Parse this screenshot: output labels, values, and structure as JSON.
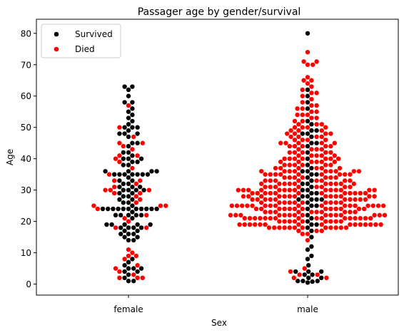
{
  "chart_data": {
    "type": "scatter",
    "subtype": "swarm",
    "title": "Passager age by gender/survival",
    "xlabel": "Sex",
    "ylabel": "Age",
    "categories": [
      "female",
      "male"
    ],
    "ylim": [
      -3.5,
      84.5
    ],
    "yticks": [
      0,
      10,
      20,
      30,
      40,
      50,
      60,
      70,
      80
    ],
    "grid": false,
    "legend_position": "top-left",
    "series": [
      {
        "name": "Survived",
        "color": "#000000",
        "values": {
          "female": [
            1,
            1,
            2,
            3,
            4,
            4,
            5,
            5,
            5,
            6,
            7,
            8,
            14,
            14,
            15,
            15,
            16,
            16,
            16,
            17,
            17,
            18,
            18,
            18,
            18,
            19,
            19,
            19,
            19,
            19,
            21,
            22,
            22,
            22,
            22,
            22,
            23,
            24,
            24,
            24,
            24,
            24,
            24,
            24,
            24,
            24,
            24,
            24,
            25,
            26,
            26,
            27,
            27,
            28,
            28,
            29,
            29,
            30,
            30,
            30,
            30,
            31,
            31,
            31,
            32,
            32,
            33,
            33,
            34,
            35,
            35,
            35,
            35,
            35,
            35,
            35,
            36,
            36,
            36,
            36,
            38,
            38,
            39,
            39,
            40,
            40,
            40,
            41,
            42,
            42,
            44,
            45,
            45,
            47,
            48,
            48,
            48,
            49,
            50,
            50,
            50,
            51,
            52,
            53,
            54,
            55,
            56,
            58,
            58,
            60,
            62,
            63,
            63
          ],
          "male": [
            0.5,
            0.8,
            1,
            1,
            1,
            2,
            2,
            3,
            3,
            4,
            4,
            4,
            6,
            8,
            9,
            11,
            12,
            15,
            17,
            18,
            19,
            19,
            20,
            21,
            22,
            24,
            25,
            25,
            26,
            27,
            27,
            27,
            27,
            28,
            28,
            29,
            29,
            30,
            30,
            31,
            32,
            32,
            33,
            34,
            35,
            35,
            36,
            36,
            37,
            38,
            40,
            42,
            44,
            45,
            45,
            47,
            48,
            48,
            49,
            49,
            51,
            52,
            56,
            58,
            60,
            62,
            80
          ]
        }
      },
      {
        "name": "Died",
        "color": "#ff0000",
        "values": {
          "female": [
            2,
            2,
            2,
            3,
            4,
            5,
            6,
            8,
            9,
            9,
            10,
            11,
            18,
            18,
            20,
            21,
            22,
            24,
            25,
            25,
            25,
            26,
            27,
            28,
            29,
            29,
            30,
            30,
            30,
            31,
            32,
            33,
            33,
            35,
            37,
            39,
            40,
            41,
            41,
            43,
            44,
            45,
            45,
            47,
            50,
            57
          ],
          "male": [
            2,
            2,
            3,
            3,
            4,
            5,
            14,
            16,
            16,
            17,
            17,
            17,
            18,
            18,
            18,
            18,
            18,
            18,
            18,
            18,
            18,
            18,
            18,
            18,
            19,
            19,
            19,
            19,
            19,
            19,
            19,
            19,
            19,
            19,
            19,
            19,
            19,
            19,
            19,
            20,
            20,
            20,
            20,
            20,
            20,
            20,
            20,
            20,
            21,
            21,
            21,
            21,
            21,
            21,
            21,
            21,
            21,
            21,
            21,
            21,
            21,
            21,
            21,
            21,
            22,
            22,
            22,
            22,
            22,
            22,
            22,
            22,
            22,
            22,
            22,
            22,
            22,
            22,
            22,
            23,
            23,
            23,
            23,
            23,
            23,
            23,
            23,
            23,
            23,
            24,
            24,
            24,
            24,
            24,
            24,
            24,
            24,
            24,
            24,
            24,
            24,
            24,
            25,
            25,
            25,
            25,
            25,
            25,
            25,
            25,
            25,
            25,
            25,
            25,
            25,
            25,
            25,
            25,
            25,
            26,
            26,
            26,
            26,
            26,
            26,
            26,
            26,
            26,
            26,
            27,
            27,
            27,
            27,
            27,
            27,
            27,
            27,
            27,
            27,
            28,
            28,
            28,
            28,
            28,
            28,
            28,
            28,
            28,
            28,
            28,
            28,
            28,
            29,
            29,
            29,
            29,
            29,
            29,
            29,
            29,
            29,
            29,
            29,
            29,
            30,
            30,
            30,
            30,
            30,
            30,
            30,
            30,
            30,
            30,
            30,
            30,
            30,
            30,
            31,
            31,
            31,
            31,
            31,
            31,
            31,
            31,
            32,
            32,
            32,
            32,
            32,
            32,
            32,
            32,
            32,
            32,
            33,
            33,
            33,
            33,
            33,
            33,
            33,
            33,
            34,
            34,
            34,
            34,
            34,
            34,
            34,
            35,
            35,
            35,
            35,
            35,
            35,
            35,
            35,
            35,
            36,
            36,
            36,
            36,
            36,
            36,
            36,
            36,
            36,
            37,
            37,
            37,
            37,
            37,
            37,
            38,
            38,
            38,
            38,
            38,
            38,
            39,
            39,
            39,
            39,
            39,
            39,
            40,
            40,
            40,
            40,
            40,
            40,
            40,
            41,
            41,
            41,
            41,
            41,
            42,
            42,
            42,
            42,
            42,
            43,
            43,
            43,
            43,
            44,
            44,
            44,
            44,
            44,
            45,
            45,
            45,
            45,
            45,
            46,
            46,
            46,
            46,
            47,
            47,
            47,
            47,
            48,
            48,
            48,
            48,
            49,
            49,
            49,
            50,
            50,
            50,
            50,
            51,
            51,
            51,
            52,
            52,
            53,
            53,
            54,
            54,
            54,
            55,
            55,
            56,
            56,
            57,
            57,
            58,
            59,
            60,
            61,
            61,
            62,
            63,
            64,
            65,
            65,
            66,
            70,
            70,
            71,
            71,
            74
          ]
        }
      }
    ]
  }
}
